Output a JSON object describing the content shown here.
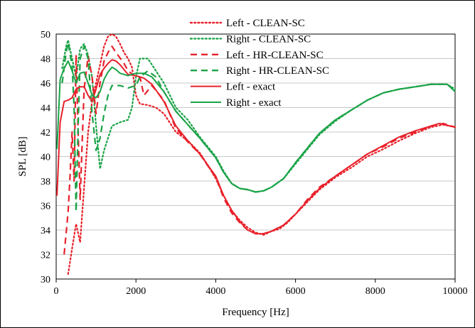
{
  "chart_data": {
    "type": "line",
    "xlabel": "Frequency [Hz]",
    "ylabel": "SPL [dB]",
    "xlim": [
      0,
      10000
    ],
    "ylim": [
      30,
      50
    ],
    "xticks": [
      0,
      2000,
      4000,
      6000,
      8000,
      10000
    ],
    "yticks": [
      30,
      32,
      34,
      36,
      38,
      40,
      42,
      44,
      46,
      48,
      50
    ],
    "grid": "horizontal",
    "legend_position": "top-center",
    "series": [
      {
        "name": "Left - CLEAN-SC",
        "color": "#e8212b",
        "style": "dotted",
        "points": [
          [
            300,
            30.4
          ],
          [
            400,
            32.5
          ],
          [
            500,
            34.5
          ],
          [
            600,
            33.0
          ],
          [
            700,
            37.5
          ],
          [
            800,
            42.0
          ],
          [
            900,
            44.5
          ],
          [
            1000,
            46.0
          ],
          [
            1100,
            47.5
          ],
          [
            1200,
            49.0
          ],
          [
            1300,
            49.8
          ],
          [
            1400,
            50.0
          ],
          [
            1500,
            49.8
          ],
          [
            1600,
            49.2
          ],
          [
            1700,
            48.5
          ],
          [
            1800,
            48.0
          ],
          [
            1900,
            47.3
          ],
          [
            2000,
            45.0
          ],
          [
            2100,
            44.3
          ],
          [
            2300,
            44.2
          ],
          [
            2500,
            44.0
          ],
          [
            2700,
            43.5
          ],
          [
            3000,
            42.0
          ],
          [
            3300,
            41.3
          ],
          [
            3600,
            40.3
          ],
          [
            3800,
            39.3
          ],
          [
            4000,
            38.2
          ],
          [
            4200,
            36.8
          ],
          [
            4400,
            35.6
          ],
          [
            4600,
            34.8
          ],
          [
            4800,
            34.2
          ],
          [
            5000,
            33.8
          ],
          [
            5200,
            33.6
          ],
          [
            5400,
            33.9
          ],
          [
            5600,
            34.1
          ],
          [
            5800,
            34.6
          ],
          [
            6000,
            35.3
          ],
          [
            6300,
            36.3
          ],
          [
            6600,
            37.3
          ],
          [
            7000,
            38.3
          ],
          [
            7400,
            39.1
          ],
          [
            7800,
            40.0
          ],
          [
            8200,
            40.6
          ],
          [
            8600,
            41.3
          ],
          [
            9000,
            41.9
          ],
          [
            9400,
            42.4
          ],
          [
            9700,
            42.6
          ],
          [
            10000,
            42.4
          ]
        ]
      },
      {
        "name": "Right - CLEAN-SC",
        "color": "#1aa347",
        "style": "dotted",
        "points": [
          [
            150,
            47.2
          ],
          [
            250,
            49.0
          ],
          [
            300,
            49.5
          ],
          [
            400,
            48.0
          ],
          [
            500,
            46.5
          ],
          [
            600,
            48.8
          ],
          [
            700,
            49.2
          ],
          [
            800,
            48.3
          ],
          [
            900,
            46.5
          ],
          [
            1000,
            42.5
          ],
          [
            1100,
            39.0
          ],
          [
            1200,
            40.5
          ],
          [
            1300,
            41.5
          ],
          [
            1400,
            42.5
          ],
          [
            1600,
            42.8
          ],
          [
            1800,
            43.0
          ],
          [
            1900,
            44.0
          ],
          [
            2000,
            46.5
          ],
          [
            2100,
            48.0
          ],
          [
            2300,
            48.0
          ],
          [
            2500,
            47.0
          ],
          [
            2700,
            46.0
          ],
          [
            3000,
            44.0
          ],
          [
            3300,
            43.0
          ],
          [
            3600,
            41.6
          ],
          [
            4000,
            40.0
          ],
          [
            4200,
            38.8
          ],
          [
            4400,
            37.8
          ],
          [
            4600,
            37.4
          ],
          [
            4800,
            37.3
          ],
          [
            5000,
            37.1
          ],
          [
            5200,
            37.2
          ],
          [
            5400,
            37.5
          ],
          [
            5700,
            38.2
          ],
          [
            6000,
            39.4
          ],
          [
            6300,
            40.6
          ],
          [
            6600,
            41.8
          ],
          [
            7000,
            42.9
          ],
          [
            7400,
            43.8
          ],
          [
            7800,
            44.6
          ],
          [
            8200,
            45.2
          ],
          [
            8600,
            45.5
          ],
          [
            9000,
            45.7
          ],
          [
            9400,
            45.9
          ],
          [
            9800,
            45.9
          ],
          [
            10000,
            45.5
          ]
        ]
      },
      {
        "name": "Left - HR-CLEAN-SC",
        "color": "#e8212b",
        "style": "dashed",
        "points": [
          [
            200,
            32.0
          ],
          [
            300,
            35.5
          ],
          [
            350,
            38.5
          ],
          [
            400,
            42.0
          ],
          [
            450,
            38.0
          ],
          [
            500,
            48.3
          ],
          [
            550,
            42.0
          ],
          [
            600,
            36.5
          ],
          [
            700,
            45.5
          ],
          [
            800,
            48.2
          ],
          [
            900,
            46.5
          ],
          [
            1000,
            43.5
          ],
          [
            1100,
            46.0
          ],
          [
            1200,
            47.8
          ],
          [
            1300,
            48.5
          ],
          [
            1400,
            49.0
          ],
          [
            1500,
            48.5
          ],
          [
            1700,
            47.6
          ],
          [
            1800,
            47.0
          ],
          [
            2000,
            46.5
          ],
          [
            2100,
            46.5
          ],
          [
            2200,
            45.0
          ],
          [
            2400,
            45.8
          ],
          [
            2700,
            44.6
          ],
          [
            3000,
            42.3
          ],
          [
            3300,
            41.2
          ],
          [
            3600,
            40.2
          ],
          [
            4000,
            38.3
          ],
          [
            4200,
            36.6
          ],
          [
            4400,
            35.4
          ],
          [
            4600,
            34.6
          ],
          [
            4800,
            34.0
          ],
          [
            5000,
            33.7
          ],
          [
            5200,
            33.7
          ],
          [
            5400,
            33.9
          ],
          [
            5700,
            34.4
          ],
          [
            6000,
            35.3
          ],
          [
            6300,
            36.5
          ],
          [
            6600,
            37.5
          ],
          [
            7000,
            38.4
          ],
          [
            7400,
            39.3
          ],
          [
            7800,
            40.2
          ],
          [
            8200,
            40.8
          ],
          [
            8600,
            41.5
          ],
          [
            9000,
            42.0
          ],
          [
            9400,
            42.5
          ],
          [
            9700,
            42.7
          ],
          [
            10000,
            42.4
          ]
        ]
      },
      {
        "name": "Right - HR-CLEAN-SC",
        "color": "#1aa347",
        "style": "dashed",
        "points": [
          [
            150,
            46.0
          ],
          [
            250,
            48.5
          ],
          [
            300,
            49.3
          ],
          [
            350,
            48.3
          ],
          [
            400,
            47.5
          ],
          [
            450,
            44.0
          ],
          [
            500,
            35.5
          ],
          [
            550,
            42.5
          ],
          [
            600,
            48.0
          ],
          [
            700,
            49.0
          ],
          [
            800,
            48.0
          ],
          [
            900,
            43.5
          ],
          [
            1000,
            40.5
          ],
          [
            1100,
            41.5
          ],
          [
            1200,
            43.5
          ],
          [
            1300,
            45.0
          ],
          [
            1400,
            45.8
          ],
          [
            1600,
            45.8
          ],
          [
            1800,
            45.6
          ],
          [
            2000,
            45.8
          ],
          [
            2100,
            46.5
          ],
          [
            2300,
            47.0
          ],
          [
            2500,
            46.5
          ],
          [
            2700,
            45.3
          ],
          [
            3000,
            43.7
          ],
          [
            3300,
            42.6
          ],
          [
            3600,
            41.5
          ],
          [
            4000,
            39.9
          ],
          [
            4200,
            38.7
          ],
          [
            4400,
            37.8
          ],
          [
            4600,
            37.4
          ],
          [
            4800,
            37.3
          ],
          [
            5000,
            37.1
          ],
          [
            5200,
            37.2
          ],
          [
            5400,
            37.5
          ],
          [
            5700,
            38.2
          ],
          [
            6000,
            39.5
          ],
          [
            6300,
            40.7
          ],
          [
            6600,
            41.9
          ],
          [
            7000,
            43.0
          ],
          [
            7400,
            43.8
          ],
          [
            7800,
            44.6
          ],
          [
            8200,
            45.2
          ],
          [
            8600,
            45.5
          ],
          [
            9000,
            45.7
          ],
          [
            9400,
            45.9
          ],
          [
            9800,
            45.9
          ],
          [
            10000,
            45.4
          ]
        ]
      },
      {
        "name": "Left - exact",
        "color": "#e8212b",
        "style": "solid",
        "points": [
          [
            20,
            36.8
          ],
          [
            100,
            42.8
          ],
          [
            200,
            44.5
          ],
          [
            300,
            44.6
          ],
          [
            400,
            44.8
          ],
          [
            500,
            45.5
          ],
          [
            600,
            45.7
          ],
          [
            700,
            45.7
          ],
          [
            800,
            45.0
          ],
          [
            900,
            44.5
          ],
          [
            1000,
            45.5
          ],
          [
            1100,
            46.7
          ],
          [
            1200,
            47.2
          ],
          [
            1300,
            47.6
          ],
          [
            1400,
            47.9
          ],
          [
            1500,
            47.8
          ],
          [
            1600,
            47.5
          ],
          [
            1700,
            47.1
          ],
          [
            1800,
            46.7
          ],
          [
            2000,
            46.6
          ],
          [
            2200,
            46.4
          ],
          [
            2400,
            45.9
          ],
          [
            2700,
            44.5
          ],
          [
            3000,
            42.5
          ],
          [
            3300,
            41.3
          ],
          [
            3600,
            40.2
          ],
          [
            4000,
            38.4
          ],
          [
            4200,
            36.8
          ],
          [
            4400,
            35.6
          ],
          [
            4600,
            34.7
          ],
          [
            4800,
            34.0
          ],
          [
            5000,
            33.7
          ],
          [
            5200,
            33.7
          ],
          [
            5400,
            33.9
          ],
          [
            5700,
            34.4
          ],
          [
            6000,
            35.3
          ],
          [
            6300,
            36.4
          ],
          [
            6600,
            37.4
          ],
          [
            7000,
            38.4
          ],
          [
            7400,
            39.3
          ],
          [
            7800,
            40.2
          ],
          [
            8200,
            40.9
          ],
          [
            8600,
            41.6
          ],
          [
            9000,
            42.1
          ],
          [
            9400,
            42.5
          ],
          [
            9600,
            42.7
          ],
          [
            10000,
            42.4
          ]
        ]
      },
      {
        "name": "Right - exact",
        "color": "#1aa347",
        "style": "solid",
        "points": [
          [
            20,
            40.6
          ],
          [
            100,
            46.3
          ],
          [
            200,
            47.2
          ],
          [
            300,
            47.8
          ],
          [
            400,
            47.0
          ],
          [
            500,
            46.0
          ],
          [
            600,
            46.8
          ],
          [
            700,
            46.9
          ],
          [
            800,
            46.0
          ],
          [
            900,
            45.0
          ],
          [
            1000,
            44.8
          ],
          [
            1100,
            45.3
          ],
          [
            1200,
            46.3
          ],
          [
            1300,
            46.9
          ],
          [
            1400,
            47.3
          ],
          [
            1500,
            47.1
          ],
          [
            1600,
            46.8
          ],
          [
            1800,
            46.6
          ],
          [
            2000,
            46.8
          ],
          [
            2200,
            46.8
          ],
          [
            2400,
            46.5
          ],
          [
            2700,
            45.3
          ],
          [
            3000,
            43.7
          ],
          [
            3300,
            42.6
          ],
          [
            3600,
            41.5
          ],
          [
            4000,
            39.9
          ],
          [
            4200,
            38.7
          ],
          [
            4400,
            37.8
          ],
          [
            4600,
            37.4
          ],
          [
            4800,
            37.3
          ],
          [
            5000,
            37.1
          ],
          [
            5200,
            37.2
          ],
          [
            5400,
            37.5
          ],
          [
            5700,
            38.2
          ],
          [
            6000,
            39.5
          ],
          [
            6300,
            40.7
          ],
          [
            6600,
            41.9
          ],
          [
            7000,
            43.0
          ],
          [
            7400,
            43.8
          ],
          [
            7800,
            44.6
          ],
          [
            8200,
            45.2
          ],
          [
            8600,
            45.5
          ],
          [
            9000,
            45.7
          ],
          [
            9400,
            45.9
          ],
          [
            9800,
            45.9
          ],
          [
            10000,
            45.3
          ]
        ]
      }
    ]
  }
}
